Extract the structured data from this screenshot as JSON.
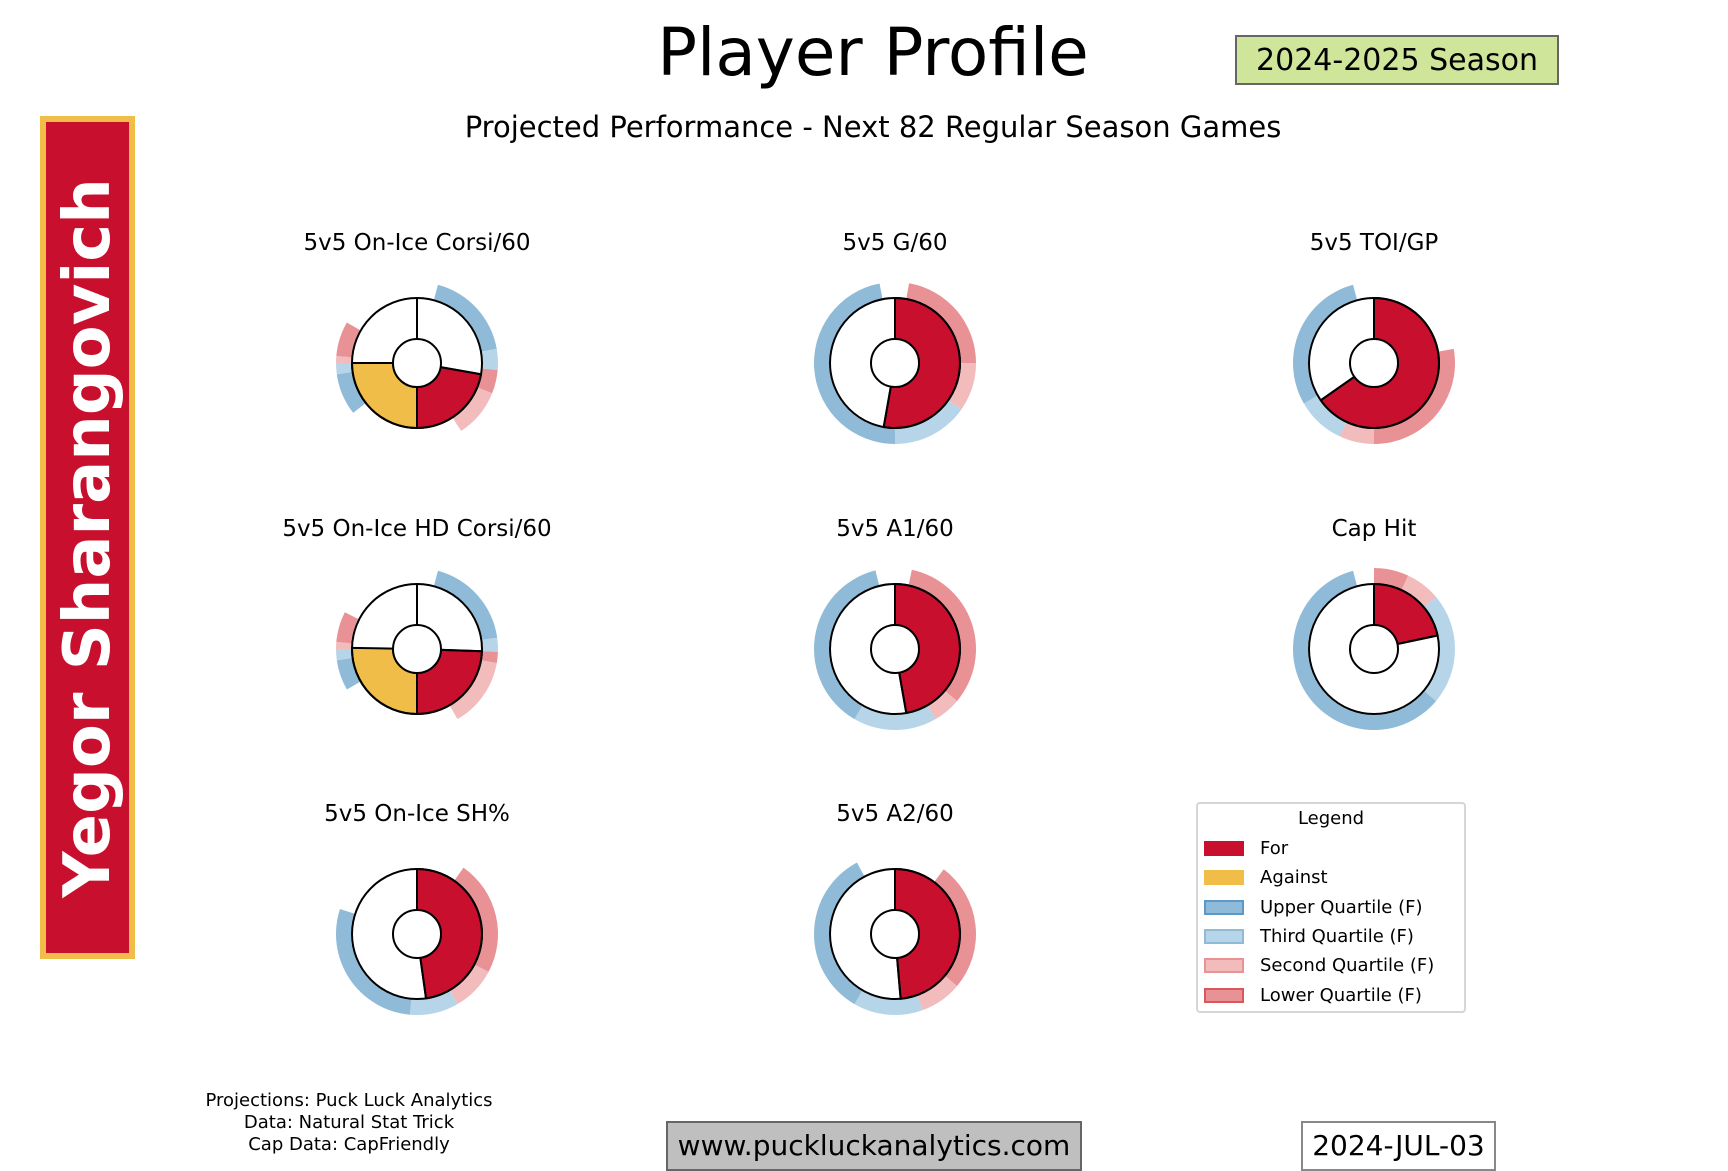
{
  "header": {
    "title": "Player Profile",
    "season": "2024-2025 Season",
    "subtitle": "Projected Performance - Next 82 Regular Season Games",
    "player_name": "Yegor Sharangovich"
  },
  "colors": {
    "for": "#c8102e",
    "against": "#f0bd48",
    "upper": "#8fbbd9",
    "third": "#b7d5e8",
    "second": "#f2bcbd",
    "lower": "#e99295"
  },
  "chart_data": [
    {
      "type": "donut",
      "title": "5v5 On-Ice Corsi/60",
      "angle_unit": "degrees clockwise from top",
      "for_arc": [
        100,
        180
      ],
      "against_arc": [
        180,
        270
      ],
      "divider_top": true,
      "ring": [
        [
          "upper",
          15,
          80
        ],
        [
          "third",
          80,
          95
        ],
        [
          "lower",
          95,
          112
        ],
        [
          "second",
          112,
          147
        ],
        [
          "upper",
          232,
          262
        ],
        [
          "third",
          262,
          270
        ],
        [
          "second",
          270,
          275
        ],
        [
          "lower",
          275,
          300
        ]
      ]
    },
    {
      "type": "donut",
      "title": "5v5 G/60",
      "angle_unit": "degrees clockwise from top",
      "for_arc": [
        0,
        190
      ],
      "ring": [
        [
          "lower",
          10,
          90
        ],
        [
          "second",
          90,
          125
        ],
        [
          "third",
          125,
          180
        ],
        [
          "upper",
          180,
          349
        ]
      ]
    },
    {
      "type": "donut",
      "title": "5v5 TOI/GP",
      "angle_unit": "degrees clockwise from top",
      "for_arc": [
        0,
        235
      ],
      "ring": [
        [
          "lower",
          80,
          180
        ],
        [
          "second",
          180,
          205
        ],
        [
          "third",
          205,
          240
        ],
        [
          "upper",
          240,
          345
        ]
      ]
    },
    {
      "type": "donut",
      "title": "5v5 On-Ice HD Corsi/60",
      "angle_unit": "degrees clockwise from top",
      "for_arc": [
        92,
        180
      ],
      "against_arc": [
        180,
        271
      ],
      "divider_top": true,
      "ring": [
        [
          "upper",
          15,
          82
        ],
        [
          "third",
          82,
          92
        ],
        [
          "lower",
          92,
          100
        ],
        [
          "second",
          100,
          150
        ],
        [
          "upper",
          240,
          262
        ],
        [
          "third",
          262,
          270
        ],
        [
          "second",
          270,
          275
        ],
        [
          "lower",
          275,
          297
        ]
      ]
    },
    {
      "type": "donut",
      "title": "5v5 A1/60",
      "angle_unit": "degrees clockwise from top",
      "for_arc": [
        0,
        170
      ],
      "ring": [
        [
          "lower",
          12,
          130
        ],
        [
          "second",
          130,
          150
        ],
        [
          "third",
          150,
          210
        ],
        [
          "upper",
          210,
          346
        ]
      ]
    },
    {
      "type": "donut",
      "title": "Cap Hit",
      "angle_unit": "degrees clockwise from top",
      "for_arc": [
        0,
        78
      ],
      "ring": [
        [
          "lower",
          0,
          25
        ],
        [
          "second",
          25,
          50
        ],
        [
          "third",
          50,
          130
        ],
        [
          "upper",
          130,
          345
        ]
      ]
    },
    {
      "type": "donut",
      "title": "5v5 On-Ice SH%",
      "angle_unit": "degrees clockwise from top",
      "for_arc": [
        0,
        172
      ],
      "ring": [
        [
          "lower",
          35,
          118
        ],
        [
          "second",
          118,
          150
        ],
        [
          "third",
          150,
          185
        ],
        [
          "upper",
          185,
          288
        ]
      ]
    },
    {
      "type": "donut",
      "title": "5v5 A2/60",
      "angle_unit": "degrees clockwise from top",
      "for_arc": [
        0,
        175
      ],
      "ring": [
        [
          "lower",
          37,
          130
        ],
        [
          "second",
          130,
          160
        ],
        [
          "third",
          160,
          210
        ],
        [
          "upper",
          210,
          332
        ]
      ]
    }
  ],
  "legend": {
    "title": "Legend",
    "items": [
      {
        "key": "for",
        "label": "For"
      },
      {
        "key": "against",
        "label": "Against"
      },
      {
        "key": "upper",
        "label": "Upper Quartile (F)"
      },
      {
        "key": "third",
        "label": "Third Quartile (F)"
      },
      {
        "key": "second",
        "label": "Second Quartile (F)"
      },
      {
        "key": "lower",
        "label": "Lower Quartile (F)"
      }
    ]
  },
  "footer": {
    "credits": [
      "Projections: Puck Luck Analytics",
      "Data: Natural Stat Trick",
      "Cap Data: CapFriendly"
    ],
    "website": "www.puckluckanalytics.com",
    "date": "2024-JUL-03"
  }
}
